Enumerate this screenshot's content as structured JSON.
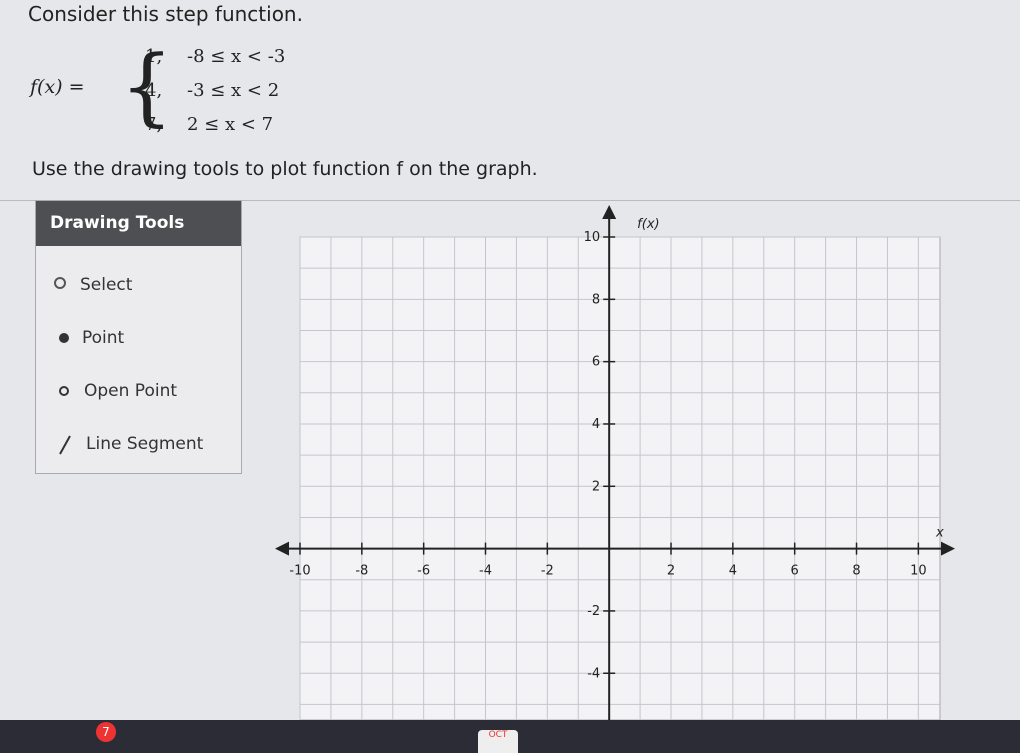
{
  "prompt": "Consider this step function.",
  "function": {
    "lhs": "f(x) =",
    "pieces": [
      {
        "value": "1,",
        "condition": "-8 ≤ x < -3"
      },
      {
        "value": "4,",
        "condition": "-3 ≤ x < 2"
      },
      {
        "value": "7,",
        "condition": "2 ≤ x < 7"
      }
    ]
  },
  "instruction": "Use the drawing tools to plot function f on the graph.",
  "tools": {
    "title": "Drawing Tools",
    "items": [
      "Select",
      "Point",
      "Open Point",
      "Line Segment"
    ]
  },
  "chart_data": {
    "type": "grid",
    "x_label": "x",
    "y_label": "f(x)",
    "xlim": [
      -10,
      10.7
    ],
    "ylim": [
      -5.5,
      10
    ],
    "xticks": [
      -10,
      -8,
      -6,
      -4,
      -2,
      2,
      4,
      6,
      8,
      10
    ],
    "yticks": [
      -4,
      -2,
      2,
      4,
      6,
      8,
      10
    ],
    "grid": true
  },
  "dock": {
    "badge": "7",
    "calendar": "OCT"
  }
}
